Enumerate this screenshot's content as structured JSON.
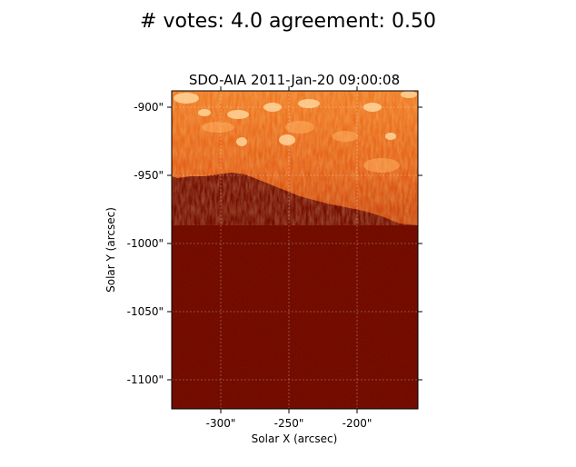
{
  "figure_title": "# votes: 4.0 agreement: 0.50",
  "axes_title": "SDO-AIA   2011-Jan-20 09:00:08",
  "xlabel": "Solar X (arcsec)",
  "ylabel": "Solar Y (arcsec)",
  "xticks": [
    "-300\"",
    "-250\"",
    "-200\""
  ],
  "yticks": [
    "-900\"",
    "-950\"",
    "-1000\"",
    "-1050\"",
    "-1100\""
  ],
  "colors": {
    "background_dark": "#8b0f00",
    "hot_orange": "#e0621a",
    "bright_plage": "#ffd59a"
  },
  "image_description_icon": "solar-limb-image"
}
